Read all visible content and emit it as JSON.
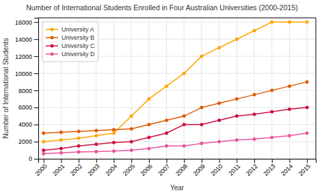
{
  "chart_data": {
    "type": "line",
    "title": "Number of International Students Enrolled in Four Australian Universities (2000-2015)",
    "xlabel": "Year",
    "ylabel": "Number of International Students",
    "x": [
      2000,
      2001,
      2002,
      2003,
      2004,
      2005,
      2006,
      2007,
      2008,
      2009,
      2010,
      2011,
      2012,
      2013,
      2014,
      2015
    ],
    "series": [
      {
        "name": "University A",
        "color": "#FFA500",
        "values": [
          2000,
          2200,
          2400,
          2700,
          3000,
          5000,
          7000,
          8500,
          10000,
          12000,
          13000,
          14000,
          15000,
          16000,
          16000,
          16000
        ]
      },
      {
        "name": "University B",
        "color": "#E05A00",
        "values": [
          3000,
          3100,
          3200,
          3300,
          3400,
          3500,
          4000,
          4500,
          5000,
          6000,
          6500,
          7000,
          7500,
          8000,
          8500,
          9000
        ]
      },
      {
        "name": "University C",
        "color": "#CC1140",
        "values": [
          1000,
          1200,
          1500,
          1700,
          1900,
          2000,
          2500,
          3000,
          4000,
          4000,
          4500,
          5000,
          5200,
          5500,
          5800,
          6000
        ]
      },
      {
        "name": "University D",
        "color": "#E8559A",
        "values": [
          600,
          700,
          800,
          850,
          900,
          1000,
          1200,
          1500,
          1500,
          1800,
          2000,
          2200,
          2300,
          2500,
          2700,
          3000
        ]
      }
    ],
    "xlim": [
      1999.7,
      2015.5
    ],
    "xticks": [
      2000,
      2001,
      2002,
      2003,
      2004,
      2005,
      2006,
      2007,
      2008,
      2009,
      2010,
      2011,
      2012,
      2013,
      2014,
      2015
    ],
    "ylim": [
      0,
      16500
    ],
    "yticks": [
      0,
      2000,
      4000,
      6000,
      8000,
      10000,
      12000,
      14000,
      16000
    ],
    "grid": true,
    "legend": "upper left",
    "marker": "circle"
  }
}
